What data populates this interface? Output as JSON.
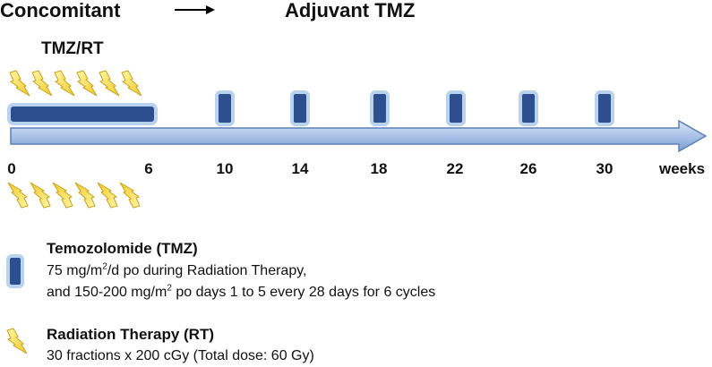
{
  "header": {
    "concomitant": "Concomitant",
    "adjuvant": "Adjuvant TMZ",
    "phase_label": "TMZ/RT"
  },
  "timeline": {
    "ticks": [
      "0",
      "6",
      "10",
      "14",
      "18",
      "22",
      "26",
      "30"
    ],
    "unit": "weeks"
  },
  "legend": {
    "tmz": {
      "title": "Temozolomide (TMZ)",
      "line1_pre": "75 mg/m",
      "line1_sup": "2",
      "line1_post": "/d po during Radiation Therapy,",
      "line2_pre": "and 150-200 mg/m",
      "line2_sup": "2",
      "line2_post": " po days 1 to 5 every 28 days for 6 cycles"
    },
    "rt": {
      "title": "Radiation Therapy (RT)",
      "line1": "30 fractions x 200 cGy (Total dose: 60 Gy)"
    }
  },
  "colors": {
    "tmz_block": "#2e4f8f",
    "tmz_glow": "#b9d3ee",
    "arrow_fill": "#a9c2e6",
    "arrow_stroke": "#5a80b8",
    "bolt": "#f6e25a"
  }
}
